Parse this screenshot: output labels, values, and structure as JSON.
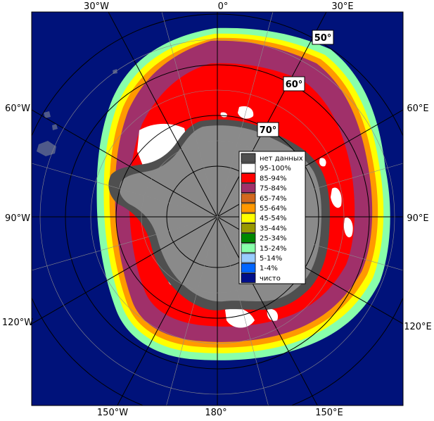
{
  "map": {
    "projection": "south-polar-stereographic",
    "lon_labels": {
      "top_left": "30°W",
      "top_center": "0°",
      "top_right": "30°E",
      "left_upper": "60°W",
      "left_middle": "90°W",
      "left_lower": "120°W",
      "right_upper": "60°E",
      "right_middle": "90°E",
      "right_lower": "120°E",
      "bottom_left": "150°W",
      "bottom_center": "180°",
      "bottom_right": "150°E"
    },
    "lat_labels": [
      "50°",
      "60°",
      "70°"
    ],
    "colors": {
      "ocean": "#00127a",
      "land": "#8a8a8a",
      "no_data": "#4f4f4f"
    }
  },
  "legend": {
    "items": [
      {
        "label": "нет данных",
        "color": "#4f4f4f"
      },
      {
        "label": "95-100%",
        "color": "#ffffff"
      },
      {
        "label": "85-94%",
        "color": "#ff0000"
      },
      {
        "label": "75-84%",
        "color": "#a0306a"
      },
      {
        "label": "65-74%",
        "color": "#d2691e"
      },
      {
        "label": "55-64%",
        "color": "#ff9900"
      },
      {
        "label": "45-54%",
        "color": "#ffff00"
      },
      {
        "label": "35-44%",
        "color": "#999900"
      },
      {
        "label": "25-34%",
        "color": "#008800"
      },
      {
        "label": "15-24%",
        "color": "#88ffaa"
      },
      {
        "label": "5-14%",
        "color": "#99ccff"
      },
      {
        "label": "1-4%",
        "color": "#0066ff"
      },
      {
        "label": "чисто",
        "color": "#000f8a"
      }
    ]
  }
}
